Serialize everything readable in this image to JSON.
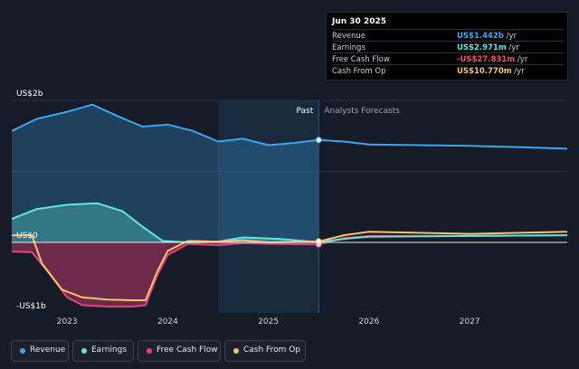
{
  "colors": {
    "revenue": "#3ba6ee",
    "earnings": "#5ee8da",
    "free_cash_flow": "#e6407f",
    "cash_from_op": "#f6c46a"
  },
  "tooltip": {
    "date": "Jun 30 2025",
    "rows": [
      {
        "name": "Revenue",
        "value": "US$1.442b",
        "unit": " /yr"
      },
      {
        "name": "Earnings",
        "value": "US$2.971m",
        "unit": " /yr"
      },
      {
        "name": "Free Cash Flow",
        "value": "-US$27.831m",
        "unit": " /yr"
      },
      {
        "name": "Cash From Op",
        "value": "US$10.770m",
        "unit": " /yr"
      }
    ]
  },
  "legend": [
    {
      "key": "revenue",
      "label": "Revenue"
    },
    {
      "key": "earnings",
      "label": "Earnings"
    },
    {
      "key": "free_cash_flow",
      "label": "Free Cash Flow"
    },
    {
      "key": "cash_from_op",
      "label": "Cash From Op"
    }
  ],
  "chart_data": {
    "type": "area",
    "x_unit": "year",
    "y_unit": "US$ billions",
    "ylim": [
      -1,
      2
    ],
    "xlim": [
      2022.45,
      2027.97
    ],
    "y_tick_labels": [
      {
        "value": 2,
        "label": "US$2b"
      },
      {
        "value": 0,
        "label": "US$0"
      },
      {
        "value": -1,
        "label": "-US$1b"
      }
    ],
    "x_tick_labels": [
      {
        "value": 2023,
        "label": "2023"
      },
      {
        "value": 2024,
        "label": "2024"
      },
      {
        "value": 2025,
        "label": "2025"
      },
      {
        "value": 2026,
        "label": "2026"
      },
      {
        "value": 2027,
        "label": "2027"
      }
    ],
    "past_label": "Past",
    "forecast_label": "Analysts Forecasts",
    "divider_x": 2025.5,
    "shaded_from_x": 2024.5,
    "marker_x": 2025.5,
    "series": [
      {
        "name": "Revenue",
        "key": "revenue",
        "values": [
          [
            2022.45,
            1.57
          ],
          [
            2022.7,
            1.74
          ],
          [
            2023.0,
            1.84
          ],
          [
            2023.25,
            1.94
          ],
          [
            2023.5,
            1.78
          ],
          [
            2023.75,
            1.63
          ],
          [
            2024.0,
            1.66
          ],
          [
            2024.25,
            1.57
          ],
          [
            2024.5,
            1.42
          ],
          [
            2024.75,
            1.46
          ],
          [
            2025.0,
            1.37
          ],
          [
            2025.25,
            1.4
          ],
          [
            2025.5,
            1.442
          ],
          [
            2025.75,
            1.42
          ],
          [
            2026.0,
            1.38
          ],
          [
            2026.5,
            1.37
          ],
          [
            2027.0,
            1.36
          ],
          [
            2027.5,
            1.34
          ],
          [
            2027.97,
            1.32
          ]
        ]
      },
      {
        "name": "Earnings",
        "key": "earnings",
        "values": [
          [
            2022.45,
            0.33
          ],
          [
            2022.7,
            0.47
          ],
          [
            2023.0,
            0.53
          ],
          [
            2023.3,
            0.55
          ],
          [
            2023.55,
            0.44
          ],
          [
            2023.75,
            0.22
          ],
          [
            2023.95,
            0.02
          ],
          [
            2024.2,
            0.0
          ],
          [
            2024.5,
            0.01
          ],
          [
            2024.75,
            0.07
          ],
          [
            2025.1,
            0.05
          ],
          [
            2025.5,
            0.003
          ],
          [
            2025.75,
            0.05
          ],
          [
            2026.0,
            0.08
          ],
          [
            2027.0,
            0.09
          ],
          [
            2027.97,
            0.1
          ]
        ]
      },
      {
        "name": "Free Cash Flow",
        "key": "free_cash_flow",
        "values": [
          [
            2022.45,
            -0.13
          ],
          [
            2022.65,
            -0.14
          ],
          [
            2022.8,
            -0.4
          ],
          [
            2023.0,
            -0.78
          ],
          [
            2023.15,
            -0.89
          ],
          [
            2023.4,
            -0.91
          ],
          [
            2023.65,
            -0.91
          ],
          [
            2023.78,
            -0.89
          ],
          [
            2023.9,
            -0.45
          ],
          [
            2024.0,
            -0.18
          ],
          [
            2024.2,
            -0.02
          ],
          [
            2024.5,
            -0.04
          ],
          [
            2024.75,
            -0.01
          ],
          [
            2025.0,
            -0.02
          ],
          [
            2025.5,
            -0.028
          ],
          [
            2025.75,
            0.06
          ],
          [
            2026.0,
            0.09
          ],
          [
            2027.0,
            0.09
          ],
          [
            2027.97,
            0.1
          ]
        ]
      },
      {
        "name": "Cash From Op",
        "key": "cash_from_op",
        "values": [
          [
            2022.45,
            0.1
          ],
          [
            2022.65,
            0.1
          ],
          [
            2022.75,
            -0.3
          ],
          [
            2022.95,
            -0.67
          ],
          [
            2023.15,
            -0.78
          ],
          [
            2023.4,
            -0.81
          ],
          [
            2023.65,
            -0.82
          ],
          [
            2023.78,
            -0.82
          ],
          [
            2023.9,
            -0.4
          ],
          [
            2024.0,
            -0.12
          ],
          [
            2024.2,
            0.02
          ],
          [
            2024.5,
            0.01
          ],
          [
            2024.75,
            0.03
          ],
          [
            2025.0,
            0.0
          ],
          [
            2025.5,
            0.011
          ],
          [
            2025.75,
            0.1
          ],
          [
            2026.0,
            0.15
          ],
          [
            2027.0,
            0.12
          ],
          [
            2027.97,
            0.15
          ]
        ]
      }
    ]
  }
}
